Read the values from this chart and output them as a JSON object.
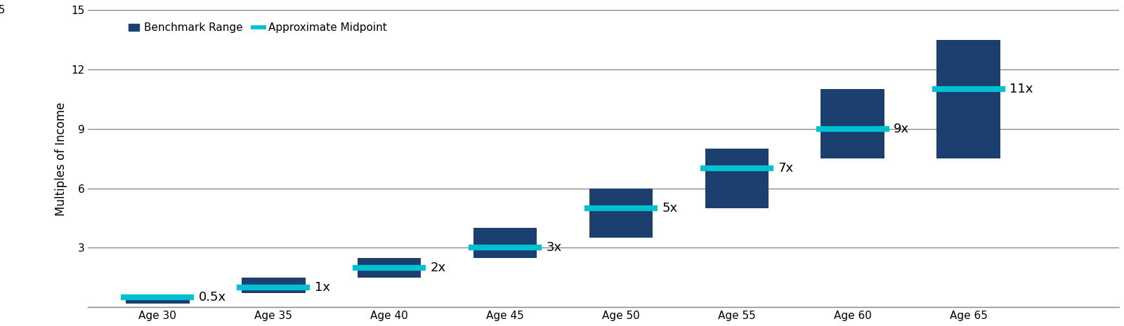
{
  "ylabel": "Multiples of Income",
  "ages": [
    "Age 30",
    "Age 35",
    "Age 40",
    "Age 45",
    "Age 50",
    "Age 55",
    "Age 60",
    "Age 65"
  ],
  "bar_bottoms": [
    0.2,
    0.7,
    1.5,
    2.5,
    3.5,
    5.0,
    7.5,
    7.5
  ],
  "bar_tops": [
    0.5,
    1.5,
    2.5,
    4.0,
    6.0,
    8.0,
    11.0,
    13.5
  ],
  "midpoints": [
    0.5,
    1.0,
    2.0,
    3.0,
    5.0,
    7.0,
    9.0,
    11.0
  ],
  "labels": [
    "0.5x",
    "1x",
    "2x",
    "3x",
    "5x",
    "7x",
    "9x",
    "11x"
  ],
  "bar_color": "#1b3f6e",
  "midpoint_color": "#00c0d4",
  "ylim": [
    0,
    15
  ],
  "yticks": [
    3,
    6,
    9,
    12,
    15
  ],
  "ytick_top": 15,
  "background_color": "#ffffff",
  "grid_color": "#8a8a8a",
  "legend_bar_label": "Benchmark Range",
  "legend_mid_label": "Approximate Midpoint",
  "bar_width": 0.55,
  "midpoint_linewidth": 6.0,
  "label_fontsize": 13,
  "axis_label_fontsize": 12,
  "tick_fontsize": 11,
  "legend_fontsize": 11
}
